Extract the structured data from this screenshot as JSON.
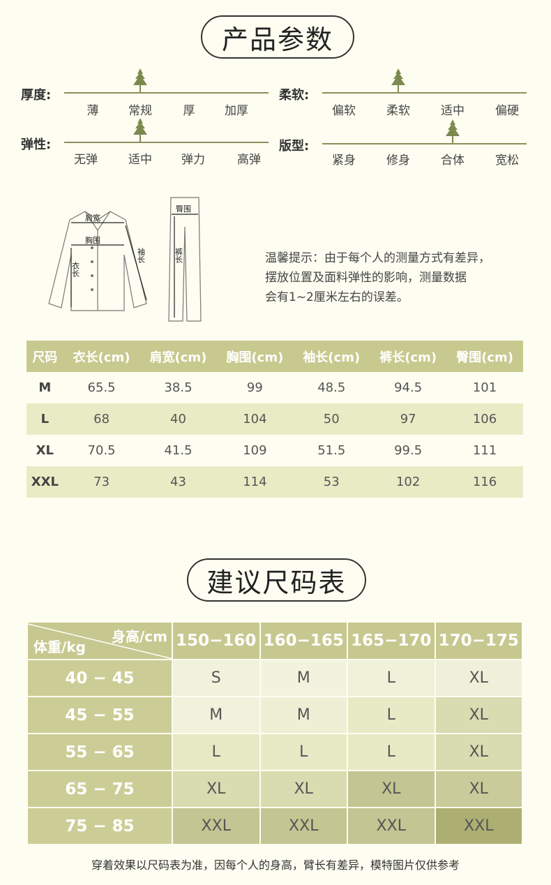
{
  "params": {
    "title": "产品参数",
    "attributes": [
      {
        "label": "厚度:",
        "options": [
          "薄",
          "常规",
          "厚",
          "加厚"
        ],
        "selected": 1
      },
      {
        "label": "弹性:",
        "options": [
          "无弹",
          "适中",
          "弹力",
          "高弹"
        ],
        "selected": 1
      },
      {
        "label": "柔软:",
        "options": [
          "偏软",
          "柔软",
          "适中",
          "偏硬"
        ],
        "selected": 1
      },
      {
        "label": "版型:",
        "options": [
          "紧身",
          "修身",
          "合体",
          "宽松"
        ],
        "selected": 2
      }
    ]
  },
  "diagram": {
    "shoulder": "肩宽",
    "chest": "胸围",
    "length": "衣长",
    "sleeve": "袖长",
    "hip": "臀围",
    "pants_length": "裤长"
  },
  "note": [
    "温馨提示：由于每个人的测量方式有差异，",
    "摆放位置及面料弹性的影响，测量数据",
    "会有1~2厘米左右的误差。"
  ],
  "size_table": {
    "headers": [
      "尺码",
      "衣长(cm)",
      "肩宽(cm)",
      "胸围(cm)",
      "袖长(cm)",
      "裤长(cm)",
      "臀围(cm)"
    ],
    "rows": [
      [
        "M",
        "65.5",
        "38.5",
        "99",
        "48.5",
        "94.5",
        "101"
      ],
      [
        "L",
        "68",
        "40",
        "104",
        "50",
        "97",
        "106"
      ],
      [
        "XL",
        "70.5",
        "41.5",
        "109",
        "51.5",
        "99.5",
        "111"
      ],
      [
        "XXL",
        "73",
        "43",
        "114",
        "53",
        "102",
        "116"
      ]
    ]
  },
  "rec": {
    "title": "建议尺码表",
    "height_label": "身高/cm",
    "weight_label": "体重/kg",
    "heights": [
      "150−160",
      "160−165",
      "165−170",
      "170−175"
    ],
    "weights": [
      "40 − 45",
      "45 − 55",
      "55 − 65",
      "65 − 75",
      "75 − 85"
    ],
    "cells": [
      [
        "S",
        "M",
        "L",
        "XL"
      ],
      [
        "M",
        "M",
        "L",
        "XL"
      ],
      [
        "L",
        "L",
        "L",
        "XL"
      ],
      [
        "XL",
        "XL",
        "XL",
        "XL"
      ],
      [
        "XXL",
        "XXL",
        "XXL",
        "XXL"
      ]
    ],
    "colors": [
      [
        "#f1f2dc",
        "#f2f3de",
        "#eff1d8",
        "#eff0d9"
      ],
      [
        "#f1f2dc",
        "#eef0d6",
        "#e8eac6",
        "#d9dbb0"
      ],
      [
        "#e7e9c4",
        "#e8eac6",
        "#e8eac6",
        "#d9dbb0"
      ],
      [
        "#d9dbb0",
        "#d9dbb0",
        "#c3c592",
        "#c9cb9a"
      ],
      [
        "#c3c592",
        "#c3c592",
        "#c3c592",
        "#adae72"
      ]
    ]
  },
  "footer": "穿着效果以尺码表为准，因每个人的身高，臂长有差异，模特图片仅供参考",
  "colors": {
    "accent": "#c8c98e",
    "line": "#8a8f5a",
    "tree": "#7d8a4e",
    "background": "#fdfdf1"
  }
}
